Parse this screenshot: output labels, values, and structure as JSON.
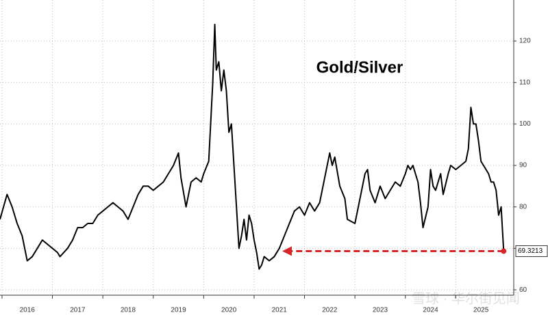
{
  "chart_data": {
    "type": "line",
    "title": "Gold/Silver",
    "watermark": "雪球 · 华尔街见闻",
    "color": "#000000",
    "grid": true,
    "x": [
      2015.96,
      2016.1,
      2016.2,
      2016.3,
      2016.4,
      2016.5,
      2016.6,
      2016.7,
      2016.8,
      2016.9,
      2017.0,
      2017.1,
      2017.15,
      2017.3,
      2017.4,
      2017.5,
      2017.6,
      2017.7,
      2017.8,
      2017.9,
      2018.0,
      2018.1,
      2018.2,
      2018.3,
      2018.4,
      2018.5,
      2018.6,
      2018.7,
      2018.8,
      2018.9,
      2019.0,
      2019.1,
      2019.2,
      2019.3,
      2019.4,
      2019.5,
      2019.55,
      2019.65,
      2019.75,
      2019.85,
      2019.95,
      2020.0,
      2020.1,
      2020.18,
      2020.22,
      2020.25,
      2020.3,
      2020.35,
      2020.4,
      2020.45,
      2020.5,
      2020.55,
      2020.6,
      2020.65,
      2020.7,
      2020.75,
      2020.8,
      2020.85,
      2020.9,
      2020.95,
      2021.0,
      2021.05,
      2021.1,
      2021.15,
      2021.2,
      2021.3,
      2021.4,
      2021.5,
      2021.6,
      2021.7,
      2021.8,
      2021.9,
      2022.0,
      2022.1,
      2022.2,
      2022.3,
      2022.4,
      2022.5,
      2022.55,
      2022.6,
      2022.7,
      2022.8,
      2022.85,
      2023.0,
      2023.1,
      2023.2,
      2023.25,
      2023.3,
      2023.4,
      2023.5,
      2023.6,
      2023.7,
      2023.8,
      2023.9,
      2024.0,
      2024.05,
      2024.1,
      2024.15,
      2024.25,
      2024.3,
      2024.35,
      2024.45,
      2024.5,
      2024.55,
      2024.6,
      2024.7,
      2024.75,
      2024.85,
      2024.9,
      2025.0,
      2025.1,
      2025.2,
      2025.25,
      2025.3,
      2025.35,
      2025.4,
      2025.45,
      2025.5,
      2025.6,
      2025.65,
      2025.7,
      2025.75,
      2025.8,
      2025.85,
      2025.9,
      2025.95
    ],
    "values": [
      77,
      83,
      80,
      76,
      73,
      67,
      68,
      70,
      72,
      71,
      70,
      69,
      68,
      70,
      72,
      75,
      75,
      76,
      76,
      78,
      79,
      80,
      81,
      80,
      79,
      77,
      80,
      83,
      85,
      85,
      84,
      85,
      86,
      88,
      90,
      93,
      87,
      80,
      86,
      87,
      86,
      88,
      91,
      110,
      124,
      113,
      115,
      108,
      113,
      108,
      98,
      100,
      90,
      80,
      70,
      73,
      77,
      72,
      78,
      76,
      72,
      69,
      65,
      66,
      68,
      67,
      68,
      70,
      73,
      76,
      79,
      80,
      78,
      81,
      79,
      81,
      87,
      93,
      90,
      92,
      85,
      82,
      77,
      76,
      82,
      88,
      89,
      84,
      81,
      85,
      82,
      84,
      86,
      85,
      88,
      90,
      89,
      90,
      86,
      81,
      75,
      80,
      89,
      85,
      84,
      88,
      83,
      88,
      90,
      89,
      90,
      91,
      94,
      104,
      100,
      100,
      96,
      91,
      89,
      88,
      86,
      86,
      84,
      78,
      80,
      69.3213
    ],
    "xlim": [
      2015.96,
      2026.15
    ],
    "xticks": [
      2016,
      2017,
      2018,
      2019,
      2020,
      2021,
      2022,
      2023,
      2024,
      2025
    ],
    "ylim": [
      58.7,
      129.9
    ],
    "yticks": [
      60,
      70,
      80,
      90,
      100,
      110,
      120
    ]
  }
}
